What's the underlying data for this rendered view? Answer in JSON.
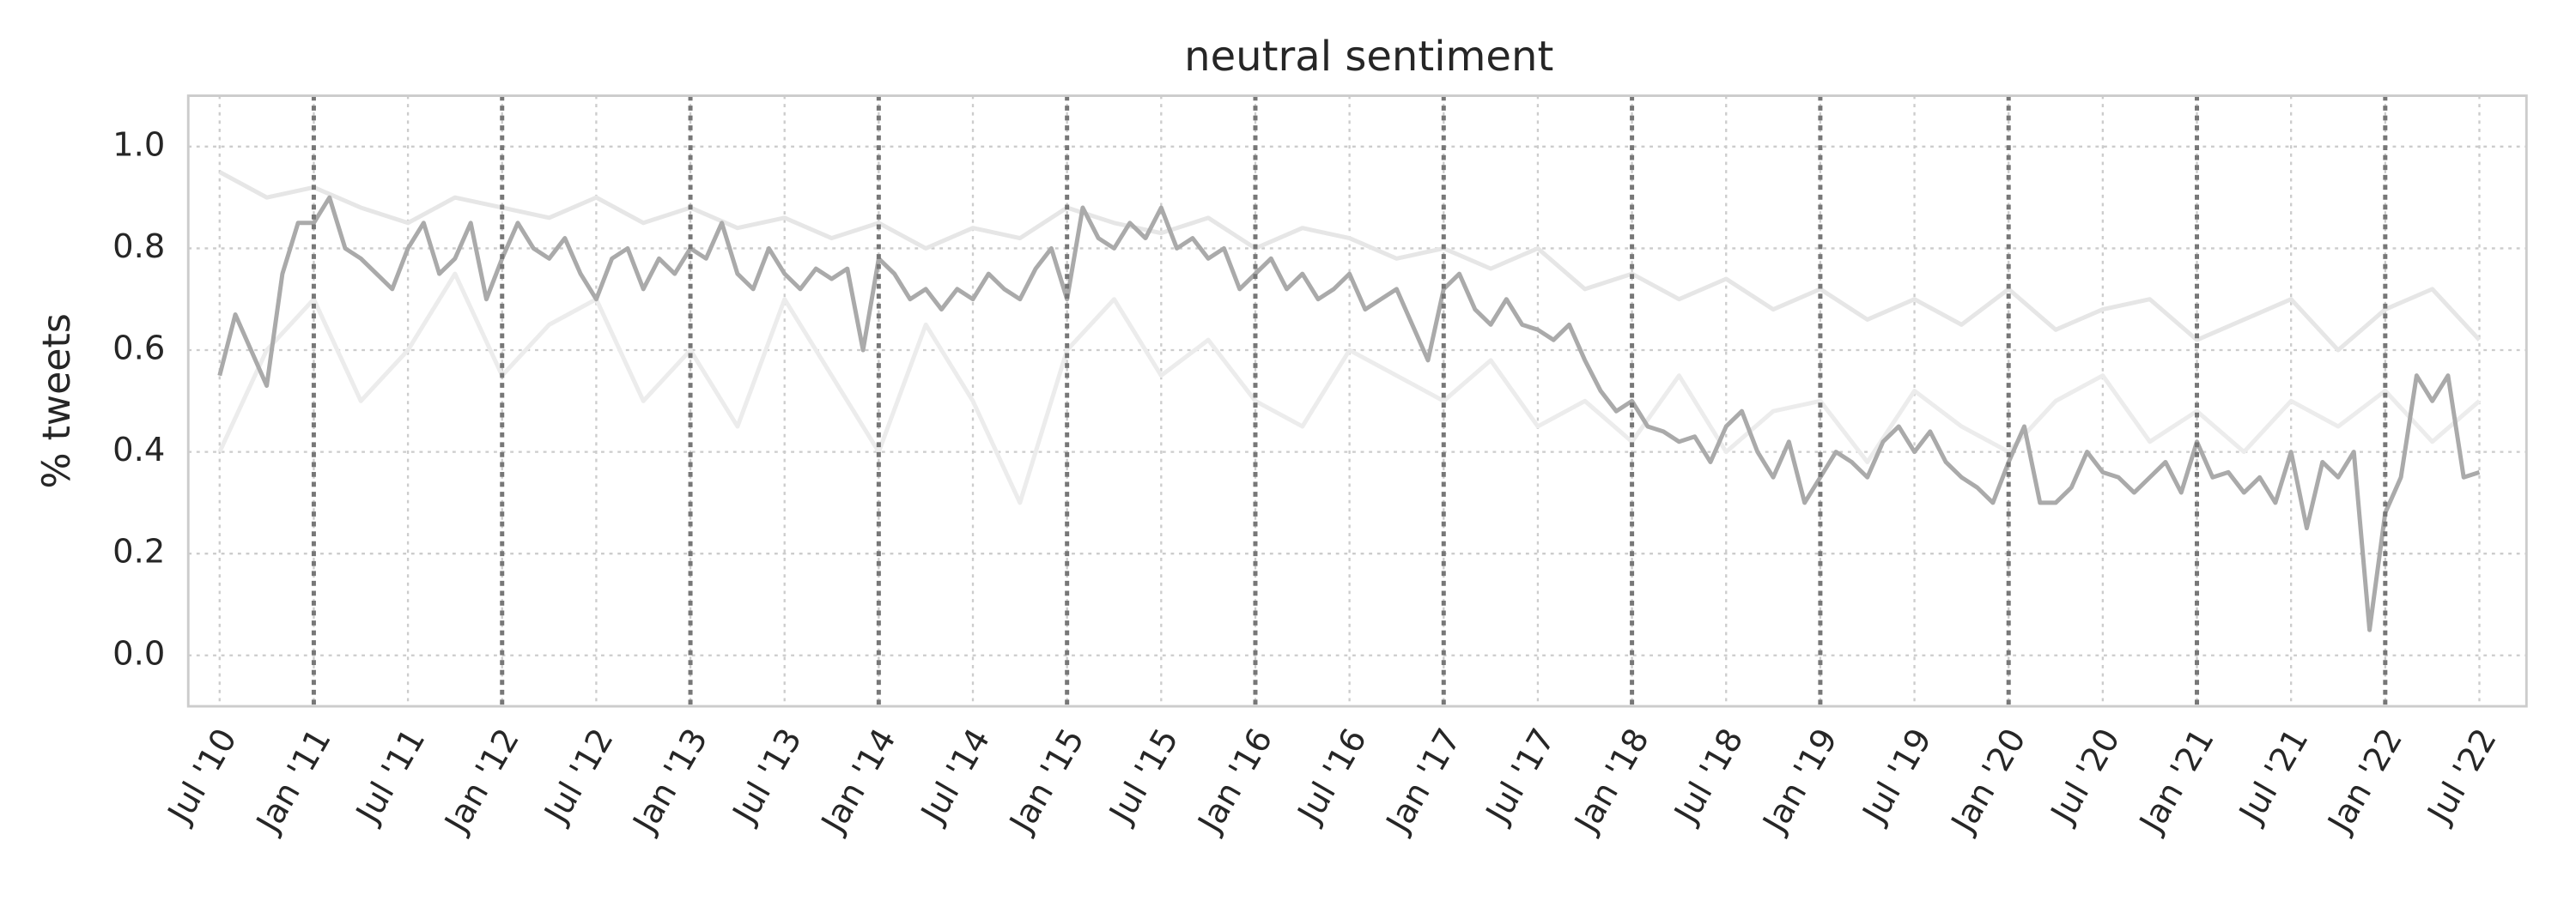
{
  "chart_data": {
    "type": "line",
    "title": "neutral sentiment",
    "ylabel": "% tweets",
    "xlim": [
      "2010-05",
      "2022-10"
    ],
    "ylim": [
      -0.1,
      1.1
    ],
    "yticks": [
      {
        "value": 0,
        "label": "0.0"
      },
      0.2,
      0.4,
      0.6,
      0.8,
      {
        "value": 1,
        "label": "1.0"
      }
    ],
    "xticks": [
      {
        "value": "2010-07",
        "label": "Jul '10"
      },
      {
        "value": "2011-01",
        "label": "Jan '11"
      },
      {
        "value": "2011-07",
        "label": "Jul '11"
      },
      {
        "value": "2012-01",
        "label": "Jan '12"
      },
      {
        "value": "2012-07",
        "label": "Jul '12"
      },
      {
        "value": "2013-01",
        "label": "Jan '13"
      },
      {
        "value": "2013-07",
        "label": "Jul '13"
      },
      {
        "value": "2014-01",
        "label": "Jan '14"
      },
      {
        "value": "2014-07",
        "label": "Jul '14"
      },
      {
        "value": "2015-01",
        "label": "Jan '15"
      },
      {
        "value": "2015-07",
        "label": "Jul '15"
      },
      {
        "value": "2016-01",
        "label": "Jan '16"
      },
      {
        "value": "2016-07",
        "label": "Jul '16"
      },
      {
        "value": "2017-01",
        "label": "Jan '17"
      },
      {
        "value": "2017-07",
        "label": "Jul '17"
      },
      {
        "value": "2018-01",
        "label": "Jan '18"
      },
      {
        "value": "2018-07",
        "label": "Jul '18"
      },
      {
        "value": "2019-01",
        "label": "Jan '19"
      },
      {
        "value": "2019-07",
        "label": "Jul '19"
      },
      {
        "value": "2020-01",
        "label": "Jan '20"
      },
      {
        "value": "2020-07",
        "label": "Jul '20"
      },
      {
        "value": "2021-01",
        "label": "Jan '21"
      },
      {
        "value": "2021-07",
        "label": "Jul '21"
      },
      {
        "value": "2022-01",
        "label": "Jan '22"
      },
      {
        "value": "2022-07",
        "label": "Jul '22"
      }
    ],
    "vlines": [
      "2011-01",
      "2012-01",
      "2013-01",
      "2014-01",
      "2015-01",
      "2016-01",
      "2017-01",
      "2018-01",
      "2019-01",
      "2020-01",
      "2021-01",
      "2022-01"
    ],
    "vline_color": "#777777",
    "grid": true,
    "series": [
      {
        "color": "#e6e6e6",
        "x": [
          "2010-07",
          "2010-10",
          "2011-01",
          "2011-04",
          "2011-07",
          "2011-10",
          "2012-01",
          "2012-04",
          "2012-07",
          "2012-10",
          "2013-01",
          "2013-04",
          "2013-07",
          "2013-10",
          "2014-01",
          "2014-04",
          "2014-07",
          "2014-10",
          "2015-01",
          "2015-04",
          "2015-07",
          "2015-10",
          "2016-01",
          "2016-04",
          "2016-07",
          "2016-10",
          "2017-01",
          "2017-04",
          "2017-07",
          "2017-10",
          "2018-01",
          "2018-04",
          "2018-07",
          "2018-10",
          "2019-01",
          "2019-04",
          "2019-07",
          "2019-10",
          "2020-01",
          "2020-04",
          "2020-07",
          "2020-10",
          "2021-01",
          "2021-04",
          "2021-07",
          "2021-10",
          "2022-01",
          "2022-04",
          "2022-07"
        ],
        "values": [
          0.95,
          0.9,
          0.92,
          0.88,
          0.85,
          0.9,
          0.88,
          0.86,
          0.9,
          0.85,
          0.88,
          0.84,
          0.86,
          0.82,
          0.85,
          0.8,
          0.84,
          0.82,
          0.88,
          0.85,
          0.83,
          0.86,
          0.8,
          0.84,
          0.82,
          0.78,
          0.8,
          0.76,
          0.8,
          0.72,
          0.75,
          0.7,
          0.74,
          0.68,
          0.72,
          0.66,
          0.7,
          0.65,
          0.72,
          0.64,
          0.68,
          0.7,
          0.62,
          0.66,
          0.7,
          0.6,
          0.68,
          0.72,
          0.62
        ]
      },
      {
        "color": "#ececec",
        "x": [
          "2010-07",
          "2010-10",
          "2011-01",
          "2011-04",
          "2011-07",
          "2011-10",
          "2012-01",
          "2012-04",
          "2012-07",
          "2012-10",
          "2013-01",
          "2013-04",
          "2013-07",
          "2013-10",
          "2014-01",
          "2014-04",
          "2014-07",
          "2014-10",
          "2015-01",
          "2015-04",
          "2015-07",
          "2015-10",
          "2016-01",
          "2016-04",
          "2016-07",
          "2016-10",
          "2017-01",
          "2017-04",
          "2017-07",
          "2017-10",
          "2018-01",
          "2018-04",
          "2018-07",
          "2018-10",
          "2019-01",
          "2019-04",
          "2019-07",
          "2019-10",
          "2020-01",
          "2020-04",
          "2020-07",
          "2020-10",
          "2021-01",
          "2021-04",
          "2021-07",
          "2021-10",
          "2022-01",
          "2022-04",
          "2022-07"
        ],
        "values": [
          0.4,
          0.6,
          0.7,
          0.5,
          0.6,
          0.75,
          0.55,
          0.65,
          0.7,
          0.5,
          0.6,
          0.45,
          0.7,
          0.55,
          0.4,
          0.65,
          0.5,
          0.3,
          0.6,
          0.7,
          0.55,
          0.62,
          0.5,
          0.45,
          0.6,
          0.55,
          0.5,
          0.58,
          0.45,
          0.5,
          0.42,
          0.55,
          0.4,
          0.48,
          0.5,
          0.38,
          0.52,
          0.45,
          0.4,
          0.5,
          0.55,
          0.42,
          0.48,
          0.4,
          0.5,
          0.45,
          0.52,
          0.42,
          0.5
        ]
      },
      {
        "color": "#aaaaaa",
        "x": [
          "2010-07",
          "2010-08",
          "2010-09",
          "2010-10",
          "2010-11",
          "2010-12",
          "2011-01",
          "2011-02",
          "2011-03",
          "2011-04",
          "2011-05",
          "2011-06",
          "2011-07",
          "2011-08",
          "2011-09",
          "2011-10",
          "2011-11",
          "2011-12",
          "2012-01",
          "2012-02",
          "2012-03",
          "2012-04",
          "2012-05",
          "2012-06",
          "2012-07",
          "2012-08",
          "2012-09",
          "2012-10",
          "2012-11",
          "2012-12",
          "2013-01",
          "2013-02",
          "2013-03",
          "2013-04",
          "2013-05",
          "2013-06",
          "2013-07",
          "2013-08",
          "2013-09",
          "2013-10",
          "2013-11",
          "2013-12",
          "2014-01",
          "2014-02",
          "2014-03",
          "2014-04",
          "2014-05",
          "2014-06",
          "2014-07",
          "2014-08",
          "2014-09",
          "2014-10",
          "2014-11",
          "2014-12",
          "2015-01",
          "2015-02",
          "2015-03",
          "2015-04",
          "2015-05",
          "2015-06",
          "2015-07",
          "2015-08",
          "2015-09",
          "2015-10",
          "2015-11",
          "2015-12",
          "2016-01",
          "2016-02",
          "2016-03",
          "2016-04",
          "2016-05",
          "2016-06",
          "2016-07",
          "2016-08",
          "2016-09",
          "2016-10",
          "2016-11",
          "2016-12",
          "2017-01",
          "2017-02",
          "2017-03",
          "2017-04",
          "2017-05",
          "2017-06",
          "2017-07",
          "2017-08",
          "2017-09",
          "2017-10",
          "2017-11",
          "2017-12",
          "2018-01",
          "2018-02",
          "2018-03",
          "2018-04",
          "2018-05",
          "2018-06",
          "2018-07",
          "2018-08",
          "2018-09",
          "2018-10",
          "2018-11",
          "2018-12",
          "2019-01",
          "2019-02",
          "2019-03",
          "2019-04",
          "2019-05",
          "2019-06",
          "2019-07",
          "2019-08",
          "2019-09",
          "2019-10",
          "2019-11",
          "2019-12",
          "2020-01",
          "2020-02",
          "2020-03",
          "2020-04",
          "2020-05",
          "2020-06",
          "2020-07",
          "2020-08",
          "2020-09",
          "2020-10",
          "2020-11",
          "2020-12",
          "2021-01",
          "2021-02",
          "2021-03",
          "2021-04",
          "2021-05",
          "2021-06",
          "2021-07",
          "2021-08",
          "2021-09",
          "2021-10",
          "2021-11",
          "2021-12",
          "2022-01",
          "2022-02",
          "2022-03",
          "2022-04",
          "2022-05",
          "2022-06",
          "2022-07"
        ],
        "values": [
          0.55,
          0.67,
          0.6,
          0.53,
          0.75,
          0.85,
          0.85,
          0.9,
          0.8,
          0.78,
          0.75,
          0.72,
          0.8,
          0.85,
          0.75,
          0.78,
          0.85,
          0.7,
          0.78,
          0.85,
          0.8,
          0.78,
          0.82,
          0.75,
          0.7,
          0.78,
          0.8,
          0.72,
          0.78,
          0.75,
          0.8,
          0.78,
          0.85,
          0.75,
          0.72,
          0.8,
          0.75,
          0.72,
          0.76,
          0.74,
          0.76,
          0.6,
          0.78,
          0.75,
          0.7,
          0.72,
          0.68,
          0.72,
          0.7,
          0.75,
          0.72,
          0.7,
          0.76,
          0.8,
          0.7,
          0.88,
          0.82,
          0.8,
          0.85,
          0.82,
          0.88,
          0.8,
          0.82,
          0.78,
          0.8,
          0.72,
          0.75,
          0.78,
          0.72,
          0.75,
          0.7,
          0.72,
          0.75,
          0.68,
          0.7,
          0.72,
          0.65,
          0.58,
          0.72,
          0.75,
          0.68,
          0.65,
          0.7,
          0.65,
          0.64,
          0.62,
          0.65,
          0.58,
          0.52,
          0.48,
          0.5,
          0.45,
          0.44,
          0.42,
          0.43,
          0.38,
          0.45,
          0.48,
          0.4,
          0.35,
          0.42,
          0.3,
          0.35,
          0.4,
          0.38,
          0.35,
          0.42,
          0.45,
          0.4,
          0.44,
          0.38,
          0.35,
          0.33,
          0.3,
          0.38,
          0.45,
          0.3,
          0.3,
          0.33,
          0.4,
          0.36,
          0.35,
          0.32,
          0.35,
          0.38,
          0.32,
          0.42,
          0.35,
          0.36,
          0.32,
          0.35,
          0.3,
          0.4,
          0.25,
          0.38,
          0.35,
          0.4,
          0.05,
          0.28,
          0.35,
          0.55,
          0.5,
          0.55,
          0.35,
          0.36
        ]
      }
    ]
  }
}
